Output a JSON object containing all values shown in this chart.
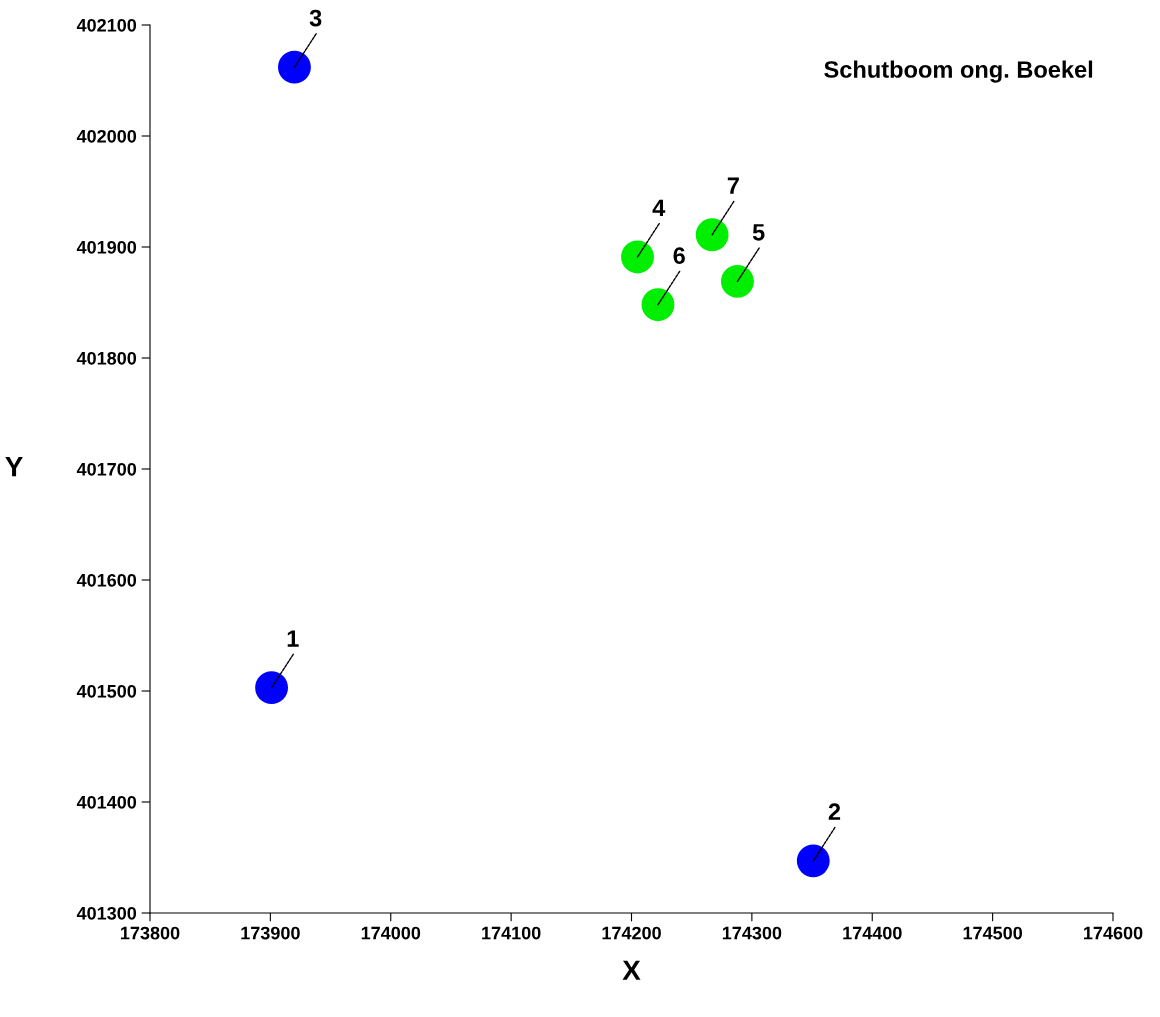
{
  "chart_data": {
    "type": "scatter",
    "title": "Schutboom ong. Boekel",
    "xlabel": "X",
    "ylabel": "Y",
    "xlim": [
      173800,
      174600
    ],
    "xticks": [
      173800,
      173900,
      174000,
      174100,
      174200,
      174300,
      174400,
      174500,
      174600
    ],
    "ylim": [
      401300,
      402100
    ],
    "yticks": [
      401300,
      401400,
      401500,
      401600,
      401700,
      401800,
      401900,
      402000,
      402100
    ],
    "grid": false,
    "legend": false,
    "marker": "circle",
    "series": [
      {
        "color": "#0000ff",
        "x": [
          173901,
          174351,
          173920
        ],
        "values": [
          401503,
          401347,
          402062
        ]
      },
      {
        "color": "#00ee00",
        "x": [
          174205,
          174288,
          174222,
          174267
        ],
        "values": [
          401891,
          401869,
          401848,
          401911
        ]
      }
    ],
    "annotations": [
      {
        "text": "1",
        "x": 173901,
        "y": 401503
      },
      {
        "text": "2",
        "x": 174351,
        "y": 401347
      },
      {
        "text": "3",
        "x": 173920,
        "y": 402062
      },
      {
        "text": "4",
        "x": 174205,
        "y": 401891
      },
      {
        "text": "5",
        "x": 174288,
        "y": 401869
      },
      {
        "text": "6",
        "x": 174222,
        "y": 401848
      },
      {
        "text": "7",
        "x": 174267,
        "y": 401911
      }
    ]
  }
}
